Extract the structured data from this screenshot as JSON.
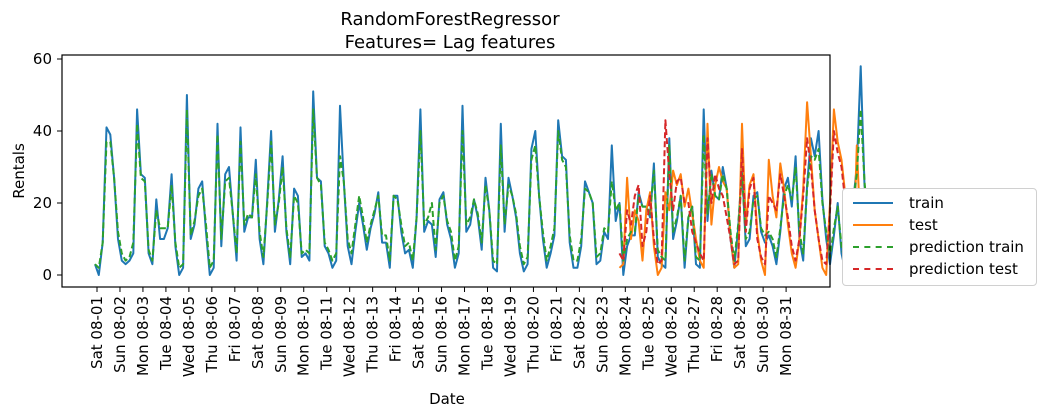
{
  "chart_data": {
    "type": "line",
    "title": "RandomForestRegressor\nFeatures= Lag features",
    "title_lines": [
      "RandomForestRegressor",
      "Features= Lag features"
    ],
    "xlabel": "Date",
    "ylabel": "Rentals",
    "ylim": [
      -3,
      61
    ],
    "yticks": [
      0,
      20,
      40,
      60
    ],
    "grid": false,
    "legend_position": "outside right, lower",
    "x_tick_labels": [
      "Sat 08-01",
      "Sun 08-02",
      "Mon 08-03",
      "Tue 08-04",
      "Wed 08-05",
      "Thu 08-06",
      "Fri 08-07",
      "Sat 08-08",
      "Sun 08-09",
      "Mon 08-10",
      "Tue 08-11",
      "Wed 08-12",
      "Thu 08-13",
      "Fri 08-14",
      "Sat 08-15",
      "Sun 08-16",
      "Mon 08-17",
      "Tue 08-18",
      "Wed 08-19",
      "Thu 08-20",
      "Fri 08-21",
      "Sat 08-22",
      "Sun 08-23",
      "Mon 08-24",
      "Tue 08-25",
      "Wed 08-26",
      "Thu 08-27",
      "Fri 08-28",
      "Sat 08-29",
      "Sun 08-30",
      "Mon 08-31"
    ],
    "x_step_note": "approx 6 samples per day (4-hour intervals); x index 0 = Sat 08-01 00:00",
    "series": [
      {
        "name": "train",
        "color": "#1f77b4",
        "style": "solid",
        "start_index": 0,
        "values": [
          3,
          0,
          9,
          41,
          39,
          27,
          10,
          4,
          3,
          4,
          6,
          46,
          28,
          27,
          6,
          3,
          21,
          10,
          10,
          13,
          28,
          8,
          0,
          2,
          50,
          10,
          14,
          24,
          26,
          12,
          0,
          2,
          42,
          8,
          28,
          30,
          17,
          4,
          41,
          12,
          16,
          16,
          32,
          10,
          3,
          21,
          40,
          12,
          21,
          33,
          12,
          3,
          24,
          22,
          5,
          6,
          4,
          51,
          27,
          26,
          8,
          6,
          2,
          4,
          47,
          26,
          8,
          3,
          12,
          20,
          14,
          7,
          13,
          17,
          23,
          9,
          9,
          2,
          22,
          22,
          12,
          6,
          7,
          2,
          16,
          46,
          12,
          15,
          14,
          5,
          21,
          23,
          14,
          10,
          2,
          6,
          47,
          12,
          14,
          21,
          16,
          7,
          27,
          18,
          2,
          1,
          42,
          12,
          27,
          22,
          16,
          6,
          1,
          3,
          35,
          40,
          22,
          10,
          2,
          6,
          11,
          43,
          33,
          32,
          9,
          2,
          2,
          8,
          26,
          23,
          20,
          3,
          4,
          12,
          10,
          36,
          15,
          20,
          0,
          8,
          11,
          11,
          23,
          19,
          19,
          16,
          31,
          5,
          3,
          2,
          38,
          10,
          15,
          22,
          2,
          16,
          19,
          3,
          2,
          46,
          15,
          29,
          22,
          21,
          30,
          24,
          10,
          2,
          13,
          30,
          8,
          10,
          22,
          23,
          12,
          9,
          11,
          8,
          3,
          12,
          24,
          27,
          19,
          33,
          10,
          4,
          25,
          38,
          33,
          40,
          21,
          10,
          3,
          11,
          20,
          6,
          1,
          8,
          20,
          30,
          58,
          25,
          12
        ]
      },
      {
        "name": "test",
        "color": "#ff7f0e",
        "style": "solid",
        "start_index": 137,
        "values": [
          2,
          3,
          27,
          10,
          18,
          15,
          4,
          18,
          23,
          8,
          0,
          2,
          23,
          18,
          29,
          25,
          28,
          19,
          24,
          17,
          10,
          4,
          2,
          42,
          14,
          25,
          30,
          26,
          24,
          11,
          2,
          3,
          42,
          14,
          25,
          28,
          12,
          4,
          0,
          32,
          22,
          16,
          31,
          24,
          14,
          6,
          2,
          10,
          24,
          48,
          33,
          18,
          10,
          2,
          0,
          20,
          46,
          37,
          32,
          22,
          8,
          2,
          36,
          11,
          24,
          18,
          22,
          9,
          18,
          7
        ]
      },
      {
        "name": "prediction train",
        "color": "#2ca02c",
        "style": "dashed",
        "start_index": 0,
        "values": [
          3,
          2,
          9,
          37,
          37,
          27,
          12,
          6,
          4,
          5,
          9,
          42,
          27,
          26,
          7,
          4,
          18,
          13,
          13,
          13,
          25,
          9,
          2,
          3,
          46,
          11,
          15,
          22,
          24,
          14,
          2,
          4,
          39,
          10,
          26,
          27,
          17,
          6,
          37,
          14,
          17,
          16,
          28,
          12,
          5,
          20,
          37,
          14,
          20,
          30,
          13,
          5,
          22,
          20,
          6,
          7,
          6,
          46,
          27,
          25,
          9,
          7,
          4,
          6,
          33,
          26,
          10,
          6,
          14,
          22,
          16,
          9,
          14,
          18,
          22,
          11,
          11,
          4,
          22,
          21,
          14,
          8,
          9,
          4,
          16,
          40,
          14,
          16,
          20,
          7,
          20,
          22,
          15,
          12,
          4,
          8,
          40,
          14,
          16,
          21,
          17,
          9,
          25,
          18,
          4,
          3,
          36,
          14,
          25,
          22,
          17,
          8,
          3,
          5,
          32,
          36,
          22,
          12,
          4,
          8,
          13,
          40,
          32,
          30,
          11,
          4,
          4,
          10,
          24,
          23,
          20,
          5,
          6,
          13,
          12,
          26,
          18,
          20,
          4,
          10,
          12,
          12,
          22,
          19,
          19,
          17,
          29,
          7,
          5,
          4,
          36,
          12,
          16,
          22,
          4,
          16,
          19,
          5,
          4,
          39,
          17,
          28,
          22,
          21,
          28,
          24,
          12,
          4,
          14,
          28,
          10,
          12,
          21,
          22,
          13,
          11,
          12,
          10,
          5,
          13,
          22,
          25,
          21,
          30,
          12,
          6,
          24,
          33,
          32,
          35,
          20,
          12,
          5,
          13,
          19,
          8,
          3,
          9,
          20,
          28,
          46,
          26,
          14
        ]
      },
      {
        "name": "prediction test",
        "color": "#d62728",
        "style": "dashed",
        "start_index": 137,
        "values": [
          6,
          4,
          18,
          14,
          22,
          25,
          8,
          12,
          22,
          10,
          3,
          4,
          43,
          28,
          18,
          26,
          27,
          20,
          20,
          12,
          9,
          6,
          4,
          38,
          20,
          28,
          24,
          22,
          16,
          10,
          3,
          4,
          35,
          12,
          24,
          27,
          10,
          5,
          3,
          22,
          20,
          18,
          28,
          22,
          16,
          8,
          4,
          10,
          22,
          38,
          30,
          18,
          10,
          4,
          3,
          18,
          40,
          34,
          30,
          20,
          10,
          5,
          22,
          14,
          20,
          20,
          24,
          12,
          18,
          13
        ]
      }
    ]
  },
  "legend": {
    "items": [
      {
        "label": "train",
        "color": "#1f77b4",
        "style": "solid"
      },
      {
        "label": "test",
        "color": "#ff7f0e",
        "style": "solid"
      },
      {
        "label": "prediction train",
        "color": "#2ca02c",
        "style": "dashed"
      },
      {
        "label": "prediction test",
        "color": "#d62728",
        "style": "dashed"
      }
    ]
  }
}
